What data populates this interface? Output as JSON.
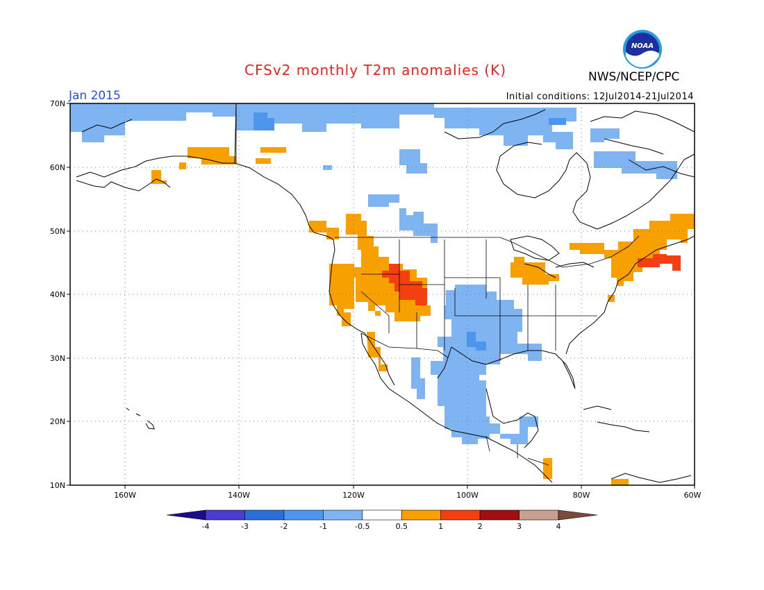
{
  "title": "CFSv2 monthly T2m anomalies (K)",
  "agency": "NWS/NCEP/CPC",
  "logo_text": "NOAA",
  "valid_period": "Jan 2015",
  "initial_conditions": "Initial conditions: 12Jul2014-21Jul2014",
  "map": {
    "lat_labels": [
      "70N",
      "60N",
      "50N",
      "40N",
      "30N",
      "20N",
      "10N"
    ],
    "lon_labels": [
      "160W",
      "140W",
      "120W",
      "100W",
      "80W",
      "60W"
    ],
    "land_color": "#ffffff",
    "coast_color": "#000000"
  },
  "colorbar": {
    "ticks": [
      "-4",
      "-3",
      "-2",
      "-1",
      "-0.5",
      "0.5",
      "1",
      "2",
      "3",
      "4"
    ],
    "colors": [
      "#1a0c8c",
      "#4b3cd0",
      "#2b6fd6",
      "#4d96ee",
      "#7fb4f2",
      "#ffffff",
      "#f8a000",
      "#f53f10",
      "#a00f10",
      "#c8a090",
      "#7a4a3a"
    ]
  },
  "anomaly_colors": {
    "pos_05_1": "#f8a000",
    "pos_1_2": "#f53f10",
    "neg_05_1": "#7fb4f2",
    "neg_1_2": "#4d96ee"
  }
}
